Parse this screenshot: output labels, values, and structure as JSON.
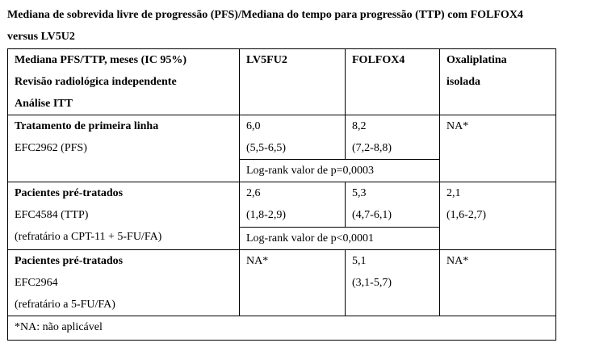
{
  "title": {
    "line1": "Mediana de sobrevida livre de progressão (PFS)/Mediana do tempo para progressão (TTP) com FOLFOX4",
    "line2": "versus LV5U2"
  },
  "header": {
    "col1": [
      "Mediana PFS/TTP, meses (IC 95%)",
      "Revisão radiológica independente",
      "Análise ITT"
    ],
    "col2": "LV5FU2",
    "col3": "FOLFOX4",
    "col4": [
      "Oxaliplatina",
      "isolada"
    ]
  },
  "rows": [
    {
      "label_bold": "Tratamento de primeira linha",
      "label_lines": [
        "EFC2962 (PFS)"
      ],
      "lv5fu2": [
        "6,0",
        "(5,5-6,5)"
      ],
      "folfox4": [
        "8,2",
        "(7,2-8,8)"
      ],
      "oxali": [
        "NA*"
      ],
      "logrank": "Log-rank valor de p=0,0003"
    },
    {
      "label_bold": "Pacientes pré-tratados",
      "label_lines": [
        "EFC4584 (TTP)",
        "(refratário a CPT-11 + 5-FU/FA)"
      ],
      "lv5fu2": [
        "2,6",
        "(1,8-2,9)"
      ],
      "folfox4": [
        "5,3",
        "(4,7-6,1)"
      ],
      "oxali": [
        "2,1",
        "(1,6-2,7)"
      ],
      "logrank": "Log-rank valor de p<0,0001"
    },
    {
      "label_bold": "Pacientes pré-tratados",
      "label_lines": [
        "EFC2964",
        "(refratário a 5-FU/FA)"
      ],
      "lv5fu2": [
        "NA*"
      ],
      "folfox4": [
        "5,1",
        "(3,1-5,7)"
      ],
      "oxali": [
        "NA*"
      ]
    }
  ],
  "footnote": "*NA: não aplicável"
}
